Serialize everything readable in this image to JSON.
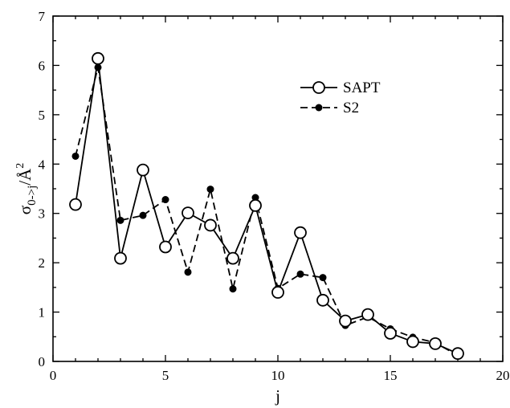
{
  "chart_data": {
    "type": "line",
    "title": "",
    "xlabel": "j",
    "ylabel_main": "σ",
    "ylabel_sub": "0->j",
    "ylabel_tail": "/Å",
    "ylabel_sup": "2",
    "xlim": [
      0,
      20
    ],
    "ylim": [
      0,
      7
    ],
    "xticks": [
      0,
      5,
      10,
      15,
      20
    ],
    "yticks": [
      0,
      1,
      2,
      3,
      4,
      5,
      6,
      7
    ],
    "grid": false,
    "legend_position": "top-right",
    "series": [
      {
        "name": "SAPT",
        "marker": "open-circle",
        "line": "solid",
        "x": [
          1,
          2,
          3,
          4,
          5,
          6,
          7,
          8,
          9,
          10,
          11,
          12,
          13,
          14,
          15,
          16,
          17,
          18
        ],
        "y": [
          3.18,
          6.14,
          2.09,
          3.88,
          2.32,
          3.01,
          2.76,
          2.09,
          3.16,
          1.4,
          2.61,
          1.24,
          0.82,
          0.95,
          0.57,
          0.4,
          0.36,
          0.16
        ]
      },
      {
        "name": "S2",
        "marker": "filled-circle",
        "line": "dashed",
        "x": [
          1,
          2,
          3,
          4,
          5,
          6,
          7,
          8,
          9,
          10,
          11,
          12,
          13,
          14,
          15,
          16,
          17,
          18
        ],
        "y": [
          4.16,
          5.96,
          2.86,
          2.96,
          3.28,
          1.81,
          3.49,
          1.47,
          3.32,
          1.48,
          1.77,
          1.7,
          0.73,
          0.9,
          0.66,
          0.49,
          0.38,
          0.12
        ]
      }
    ]
  }
}
